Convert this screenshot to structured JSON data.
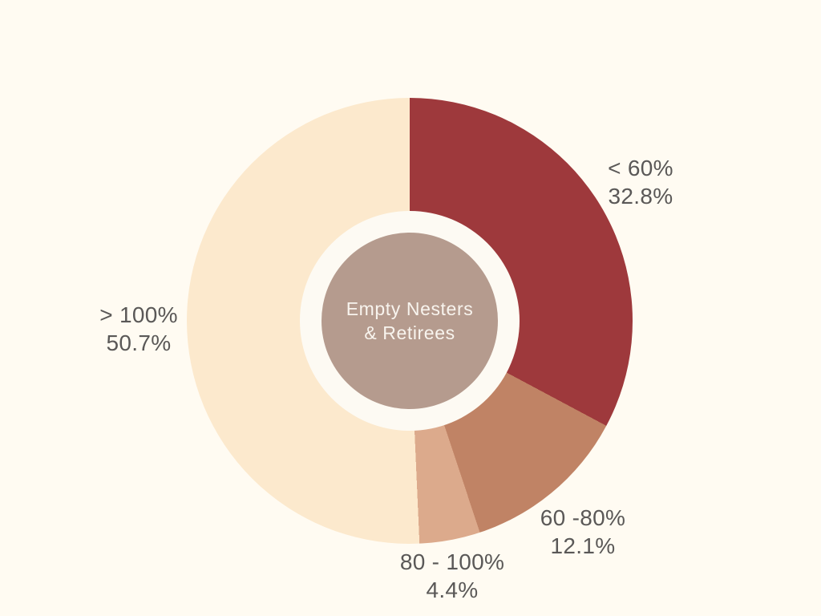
{
  "background_color": "#fffbf2",
  "chart_data": {
    "type": "pie",
    "variant": "donut",
    "title": "",
    "start_angle_deg": 0,
    "direction": "clockwise",
    "center_label": {
      "line1": "Empty Nesters",
      "line2": "& Retirees"
    },
    "slices": [
      {
        "label": "< 60%",
        "value": 32.8,
        "value_label": "32.8%",
        "color": "#9e393c"
      },
      {
        "label": "60 -80%",
        "value": 12.1,
        "value_label": "12.1%",
        "color": "#c08365"
      },
      {
        "label": "80 - 100%",
        "value": 4.4,
        "value_label": "4.4%",
        "color": "#dcaa8c"
      },
      {
        "label": "> 100%",
        "value": 50.7,
        "value_label": "50.7%",
        "color": "#fce9cd"
      }
    ],
    "colors": {
      "center_circle": "#b59b8e",
      "ring_gap": "#fdfaf3",
      "label_text": "#5a5857",
      "center_text": "#f8f4ee"
    },
    "legend_position": "none",
    "labels_placement": "outside"
  }
}
